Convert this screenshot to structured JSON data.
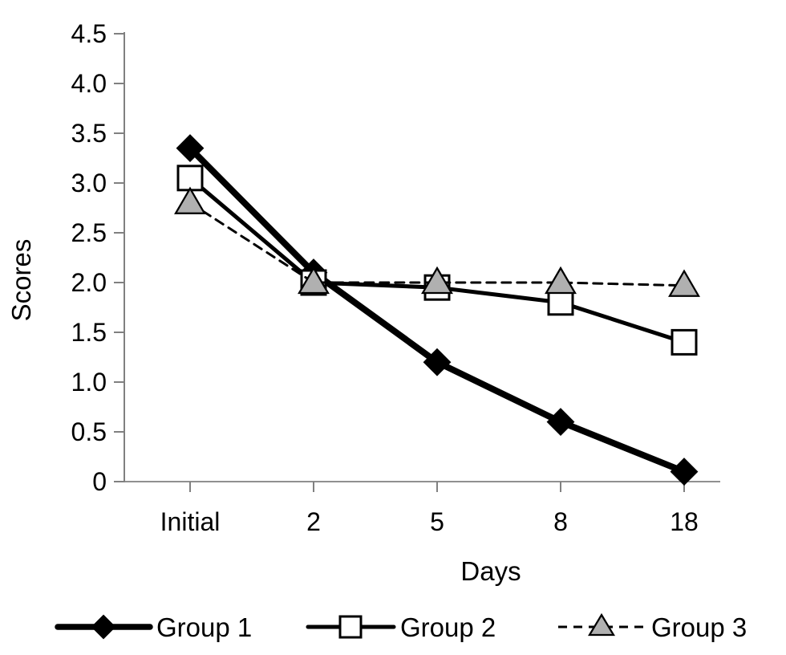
{
  "chart_data": {
    "type": "line",
    "title": "",
    "xlabel": "Days",
    "ylabel": "Scores",
    "categories": [
      "Initial",
      "2",
      "5",
      "8",
      "18"
    ],
    "y_ticks": [
      "0",
      "0.5",
      "1.0",
      "1.5",
      "2.0",
      "2.5",
      "3.0",
      "3.5",
      "4.0",
      "4.5"
    ],
    "y_tick_values": [
      0,
      0.5,
      1.0,
      1.5,
      2.0,
      2.5,
      3.0,
      3.5,
      4.0,
      4.5
    ],
    "ylim": [
      0,
      4.5
    ],
    "grid": false,
    "legend_position": "bottom",
    "axis_color": "#808080",
    "text_color": "#000000",
    "series": [
      {
        "name": "Group 1",
        "values": [
          3.35,
          2.1,
          1.2,
          0.6,
          0.1
        ],
        "marker": "diamond",
        "marker_fill": "#000000",
        "marker_stroke": "#000000",
        "line_style": "solid",
        "line_width": 8,
        "color": "#000000"
      },
      {
        "name": "Group 2",
        "values": [
          3.05,
          2.0,
          1.95,
          1.8,
          1.4
        ],
        "marker": "square",
        "marker_fill": "#ffffff",
        "marker_stroke": "#000000",
        "line_style": "solid",
        "line_width": 5,
        "color": "#000000"
      },
      {
        "name": "Group 3",
        "values": [
          2.8,
          2.0,
          2.0,
          2.0,
          1.97
        ],
        "marker": "triangle",
        "marker_fill": "#b0b0b0",
        "marker_stroke": "#000000",
        "line_style": "dashed",
        "line_width": 3,
        "color": "#000000"
      }
    ]
  }
}
